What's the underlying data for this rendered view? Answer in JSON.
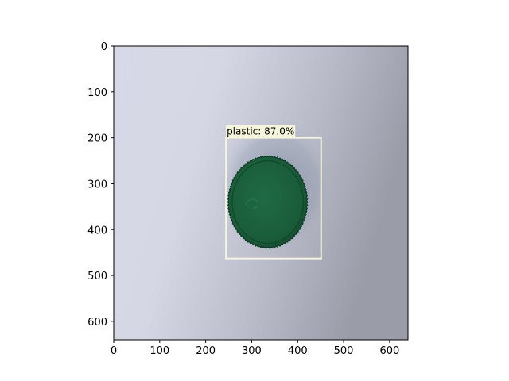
{
  "chart_data": {
    "type": "image-with-detection",
    "title": "",
    "xlabel": "",
    "ylabel": "",
    "xlim": [
      0,
      640
    ],
    "ylim": [
      640,
      0
    ],
    "x_ticks": [
      0,
      100,
      200,
      300,
      400,
      500,
      600
    ],
    "y_ticks": [
      0,
      100,
      200,
      300,
      400,
      500,
      600
    ],
    "detections": [
      {
        "label": "plastic: 87.0%",
        "bbox_data": {
          "x0": 244,
          "y0": 200,
          "x1": 451,
          "y1": 463
        },
        "box_color": "#f5f5dc"
      }
    ],
    "object": {
      "name": "green bottle cap",
      "center": [
        335,
        340
      ],
      "radius": 88,
      "color": "#1b5e3b"
    }
  },
  "colors": {
    "background_light": "#d9dbe8",
    "background_dark": "#9c9ea9",
    "box_color": "#f5f5dc",
    "label_bg": "#f5f5dc",
    "label_text": "#000000",
    "axis_color": "#000000"
  }
}
